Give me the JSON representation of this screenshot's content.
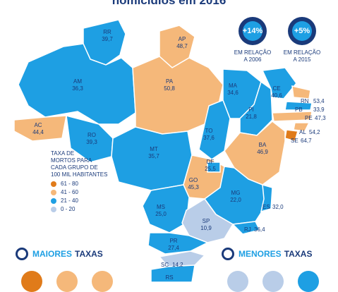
{
  "title": "homicídios em 2016",
  "badges": [
    {
      "value": "+14%",
      "caption_line1": "EM RELAÇÃO",
      "caption_line2": "A 2006"
    },
    {
      "value": "+5%",
      "caption_line1": "EM RELAÇÃO",
      "caption_line2": "A 2015"
    }
  ],
  "legend": {
    "title_lines": [
      "TAXA DE",
      "MORTOS PARA",
      "CADA GRUPO DE",
      "100 MIL HABITANTES"
    ],
    "items": [
      {
        "label": "61 - 80",
        "color": "#e07b1a"
      },
      {
        "label": "41 - 60",
        "color": "#f5b87a"
      },
      {
        "label": "21 - 40",
        "color": "#1e9fe3"
      },
      {
        "label": "0 - 20",
        "color": "#b9cde8"
      }
    ]
  },
  "states": [
    {
      "abbr": "RR",
      "value": "39,7",
      "band": "21-40"
    },
    {
      "abbr": "AP",
      "value": "48,7",
      "band": "41-60"
    },
    {
      "abbr": "AM",
      "value": "36,3",
      "band": "21-40"
    },
    {
      "abbr": "PA",
      "value": "50,8",
      "band": "41-60"
    },
    {
      "abbr": "MA",
      "value": "34,6",
      "band": "21-40"
    },
    {
      "abbr": "CE",
      "value": "40,6",
      "band": "21-40"
    },
    {
      "abbr": "RN",
      "value": "53,4",
      "band": "41-60"
    },
    {
      "abbr": "PB",
      "value": "33,9",
      "band": "21-40"
    },
    {
      "abbr": "PE",
      "value": "47,3",
      "band": "41-60"
    },
    {
      "abbr": "PI",
      "value": "21,8",
      "band": "21-40"
    },
    {
      "abbr": "AC",
      "value": "44,4",
      "band": "41-60"
    },
    {
      "abbr": "RO",
      "value": "39,3",
      "band": "21-40"
    },
    {
      "abbr": "TO",
      "value": "37,6",
      "band": "21-40"
    },
    {
      "abbr": "AL",
      "value": "54,2",
      "band": "41-60"
    },
    {
      "abbr": "SE",
      "value": "64,7",
      "band": "61-80"
    },
    {
      "abbr": "BA",
      "value": "46,9",
      "band": "41-60"
    },
    {
      "abbr": "MT",
      "value": "35,7",
      "band": "21-40"
    },
    {
      "abbr": "DF",
      "value": "25,5",
      "band": "21-40"
    },
    {
      "abbr": "GO",
      "value": "45,3",
      "band": "41-60"
    },
    {
      "abbr": "MG",
      "value": "22,0",
      "band": "21-40"
    },
    {
      "abbr": "ES",
      "value": "32,0",
      "band": "21-40"
    },
    {
      "abbr": "MS",
      "value": "25,0",
      "band": "21-40"
    },
    {
      "abbr": "SP",
      "value": "10,9",
      "band": "0-20"
    },
    {
      "abbr": "RJ",
      "value": "36,4",
      "band": "21-40"
    },
    {
      "abbr": "PR",
      "value": "27,4",
      "band": "21-40"
    },
    {
      "abbr": "SC",
      "value": "14,2",
      "band": "0-20"
    },
    {
      "abbr": "RS",
      "value": "",
      "band": "21-40"
    }
  ],
  "sections": {
    "highest": {
      "label1": "MAIORES",
      "label2": "TAXAS"
    },
    "lowest": {
      "label1": "MENORES",
      "label2": "TAXAS"
    }
  },
  "colors": {
    "band_61_80": "#e07b1a",
    "band_41_60": "#f5b87a",
    "band_21_40": "#1e9fe3",
    "band_0_20": "#b9cde8",
    "navy": "#1a3a7a"
  }
}
